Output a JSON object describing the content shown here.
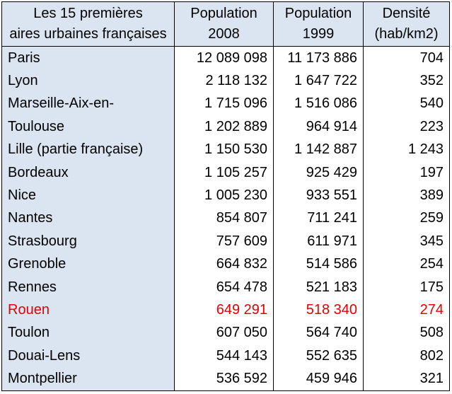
{
  "headers": [
    {
      "line1": "Les 15 premières",
      "line2": "aires urbaines françaises"
    },
    {
      "line1": "Population",
      "line2": "2008"
    },
    {
      "line1": "Population",
      "line2": "1999"
    },
    {
      "line1": "Densité",
      "line2": "(hab/km2)"
    }
  ],
  "highlight_color": "#e60000",
  "header_bg": "#dbe5f1",
  "rows": [
    {
      "city": "Paris",
      "pop2008": "12 089 098",
      "pop1999": "11 173 886",
      "density": "704",
      "highlighted": false
    },
    {
      "city": "Lyon",
      "pop2008": "2 118 132",
      "pop1999": "1 647 722",
      "density": "352",
      "highlighted": false
    },
    {
      "city": "Marseille-Aix-en-",
      "pop2008": "1 715 096",
      "pop1999": "1 516 086",
      "density": "540",
      "highlighted": false
    },
    {
      "city": "Toulouse",
      "pop2008": "1 202 889",
      "pop1999": "964 914",
      "density": "223",
      "highlighted": false
    },
    {
      "city": "Lille (partie française)",
      "pop2008": "1 150 530",
      "pop1999": "1 142 887",
      "density": "1 243",
      "highlighted": false
    },
    {
      "city": "Bordeaux",
      "pop2008": "1 105 257",
      "pop1999": "925 429",
      "density": "197",
      "highlighted": false
    },
    {
      "city": "Nice",
      "pop2008": "1 005 230",
      "pop1999": "933 551",
      "density": "389",
      "highlighted": false
    },
    {
      "city": "Nantes",
      "pop2008": "854 807",
      "pop1999": "711 241",
      "density": "259",
      "highlighted": false
    },
    {
      "city": "Strasbourg",
      "pop2008": "757 609",
      "pop1999": "611 971",
      "density": "345",
      "highlighted": false
    },
    {
      "city": "Grenoble",
      "pop2008": "664 832",
      "pop1999": "514 586",
      "density": "254",
      "highlighted": false
    },
    {
      "city": "Rennes",
      "pop2008": "654 478",
      "pop1999": "521 183",
      "density": "175",
      "highlighted": false
    },
    {
      "city": "Rouen",
      "pop2008": "649 291",
      "pop1999": "518 340",
      "density": "274",
      "highlighted": true
    },
    {
      "city": "Toulon",
      "pop2008": "607 050",
      "pop1999": "564 740",
      "density": "508",
      "highlighted": false
    },
    {
      "city": "Douai-Lens",
      "pop2008": "544 143",
      "pop1999": "552 635",
      "density": "802",
      "highlighted": false
    },
    {
      "city": "Montpellier",
      "pop2008": "536 592",
      "pop1999": "459 946",
      "density": "321",
      "highlighted": false
    }
  ]
}
